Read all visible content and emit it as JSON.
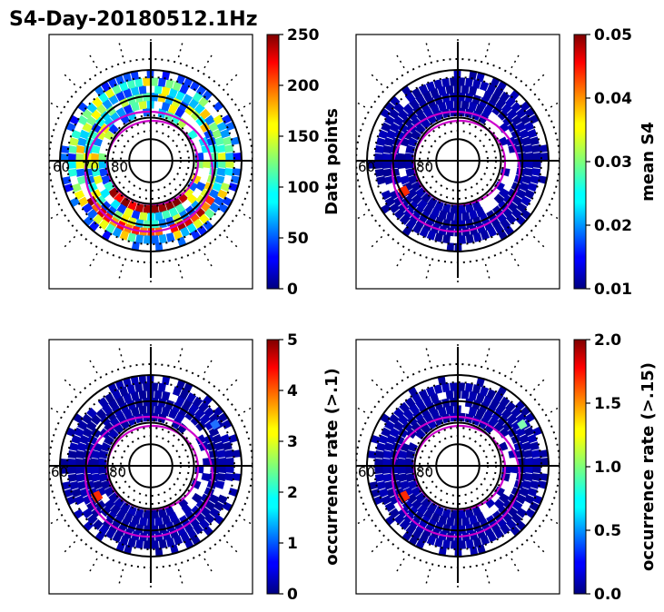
{
  "title": "S4-Day-20180512.1Hz",
  "chart_data": [
    {
      "type": "heatmap",
      "projection": "polar",
      "position": "top-left",
      "polar_tick_labels": [
        "60",
        "70",
        "80"
      ],
      "colorbar": {
        "label": "Data points",
        "colormap": "jet",
        "range": [
          0,
          250
        ],
        "ticks": [
          "0",
          "50",
          "100",
          "150",
          "200",
          "250"
        ]
      }
    },
    {
      "type": "heatmap",
      "projection": "polar",
      "position": "top-right",
      "polar_tick_labels": [
        "60",
        "80"
      ],
      "colorbar": {
        "label": "mean S4",
        "colormap": "jet",
        "range": [
          0.01,
          0.05
        ],
        "ticks": [
          "0.01",
          "0.02",
          "0.03",
          "0.04",
          "0.05"
        ]
      }
    },
    {
      "type": "heatmap",
      "projection": "polar",
      "position": "bottom-left",
      "polar_tick_labels": [
        "60",
        "80"
      ],
      "colorbar": {
        "label": "occurrence rate (>.1)",
        "colormap": "jet",
        "range": [
          0,
          5
        ],
        "ticks": [
          "0",
          "1",
          "2",
          "3",
          "4",
          "5"
        ]
      }
    },
    {
      "type": "heatmap",
      "projection": "polar",
      "position": "bottom-right",
      "polar_tick_labels": [
        "60",
        "80"
      ],
      "colorbar": {
        "label": "occurrence rate (>.15)",
        "colormap": "jet",
        "range": [
          0,
          2
        ],
        "ticks": [
          "0.0",
          "0.5",
          "1.0",
          "1.5",
          "2.0"
        ]
      }
    }
  ],
  "colors": {
    "oval": "#cc00cc",
    "grid": "#000000",
    "dark_bin": "#00008f",
    "hot": "#ff2a00"
  }
}
